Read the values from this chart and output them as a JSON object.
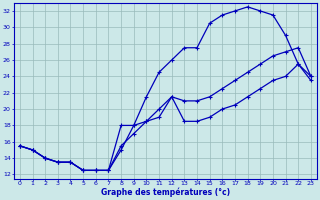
{
  "xlabel": "Graphe des températures (°c)",
  "bg_color": "#cce8e8",
  "line_color": "#0000bb",
  "grid_color": "#99bbbb",
  "xlim": [
    -0.5,
    23.5
  ],
  "ylim": [
    11.5,
    33.0
  ],
  "xticks": [
    0,
    1,
    2,
    3,
    4,
    5,
    6,
    7,
    8,
    9,
    10,
    11,
    12,
    13,
    14,
    15,
    16,
    17,
    18,
    19,
    20,
    21,
    22,
    23
  ],
  "yticks": [
    12,
    14,
    16,
    18,
    20,
    22,
    24,
    26,
    28,
    30,
    32
  ],
  "lx1": [
    0,
    1,
    2,
    3,
    4,
    5,
    6,
    7,
    8,
    9,
    10,
    11,
    12,
    13,
    14,
    15,
    16,
    17,
    18,
    19,
    20,
    21,
    22,
    23
  ],
  "ly1": [
    15.5,
    15.0,
    14.0,
    13.5,
    13.5,
    12.5,
    12.5,
    12.5,
    15.0,
    18.0,
    21.5,
    24.5,
    26.0,
    27.5,
    27.5,
    30.5,
    31.5,
    32.0,
    32.5,
    32.0,
    31.5,
    29.0,
    25.5,
    23.5
  ],
  "lx2": [
    0,
    1,
    2,
    3,
    4,
    5,
    6,
    7,
    8,
    9,
    10,
    11,
    12,
    13,
    14,
    15,
    16,
    17,
    18,
    19,
    20,
    21,
    22,
    23
  ],
  "ly2": [
    15.5,
    15.0,
    14.0,
    13.5,
    13.5,
    12.5,
    12.5,
    12.5,
    15.5,
    17.0,
    18.5,
    20.0,
    21.5,
    21.0,
    21.0,
    21.5,
    22.5,
    23.5,
    24.5,
    25.5,
    26.5,
    27.0,
    27.5,
    24.0
  ],
  "lx3": [
    0,
    1,
    2,
    3,
    4,
    5,
    6,
    7,
    8,
    9,
    10,
    11,
    12,
    13,
    14,
    15,
    16,
    17,
    18,
    19,
    20,
    21,
    22,
    23
  ],
  "ly3": [
    15.5,
    15.0,
    14.0,
    13.5,
    13.5,
    12.5,
    12.5,
    12.5,
    18.0,
    18.0,
    18.5,
    19.0,
    21.5,
    18.5,
    18.5,
    19.0,
    20.0,
    20.5,
    21.5,
    22.5,
    23.5,
    24.0,
    25.5,
    24.0
  ]
}
